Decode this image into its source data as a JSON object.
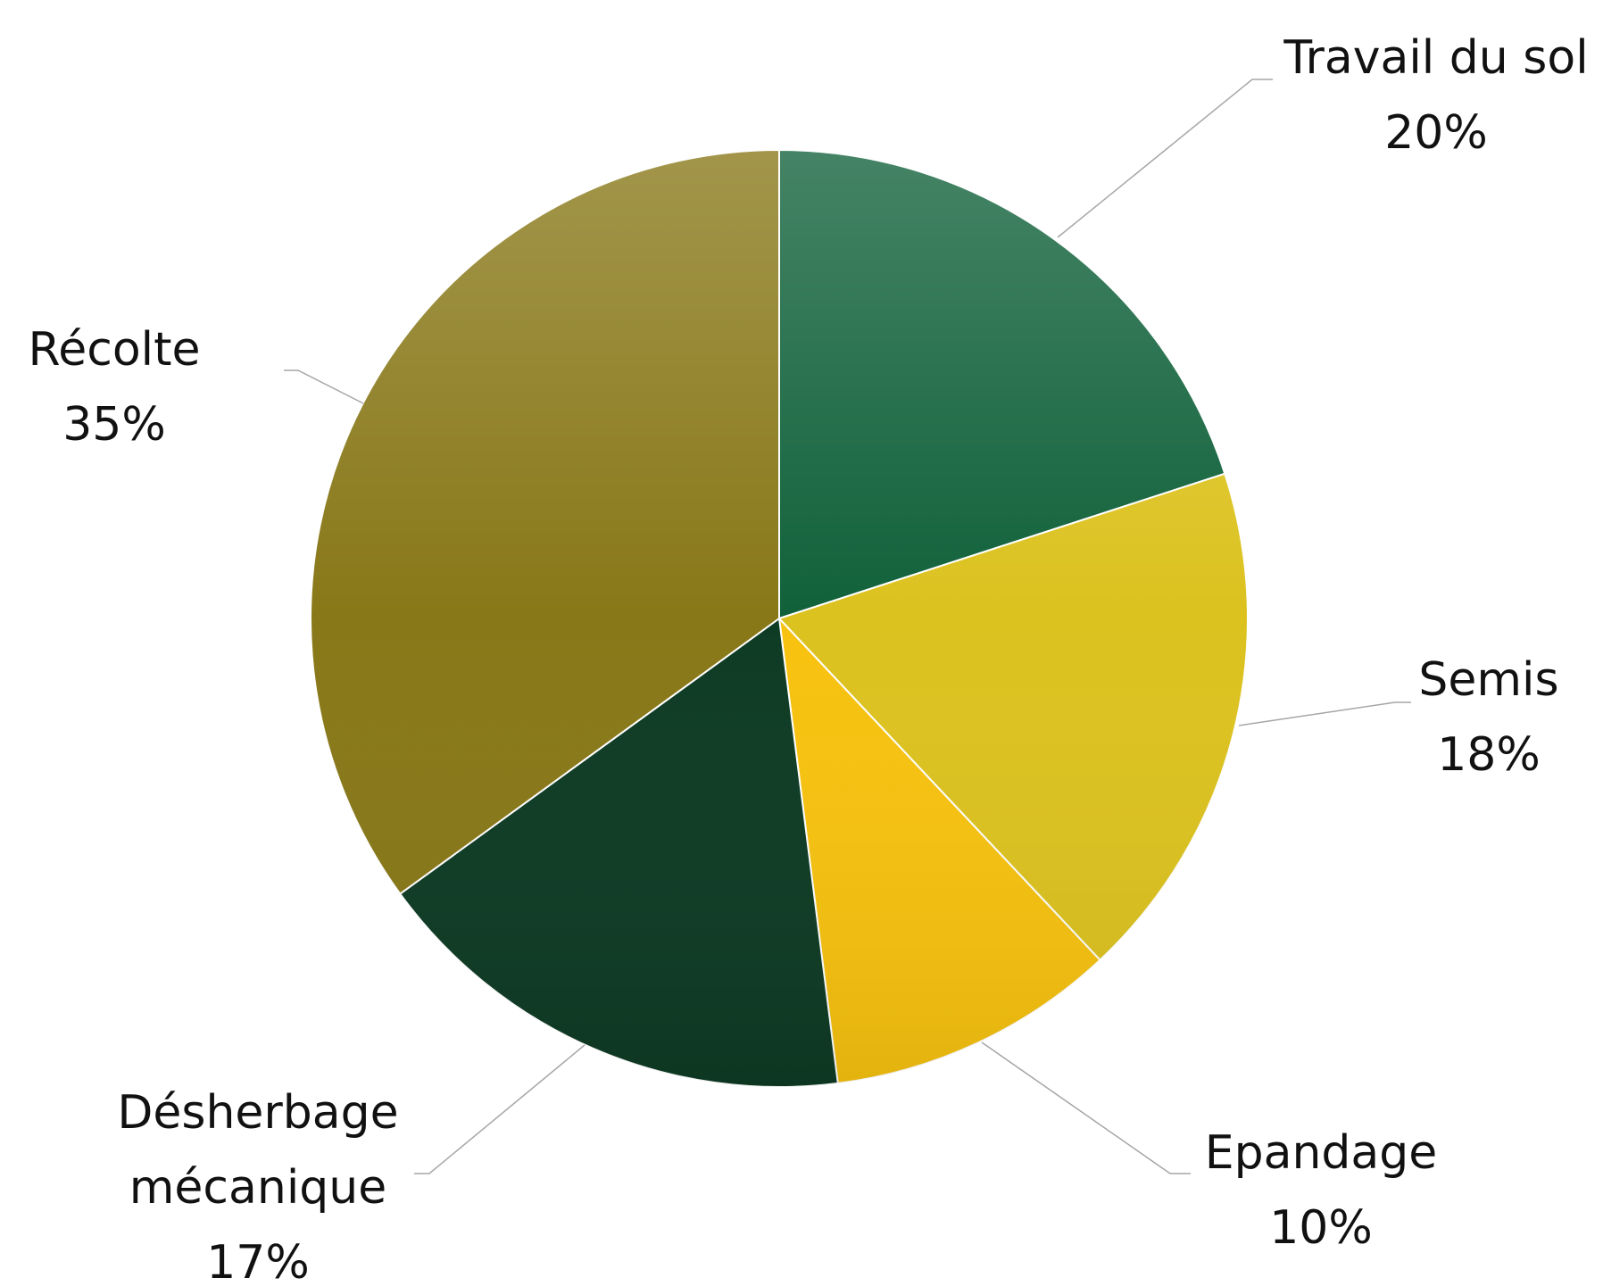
{
  "chart_data": {
    "type": "pie",
    "categories": [
      "Travail du sol",
      "Semis",
      "Epandage",
      "Désherbage mécanique",
      "Récolte"
    ],
    "values": [
      20,
      18,
      10,
      17,
      35
    ],
    "value_labels": [
      "20%",
      "18%",
      "10%",
      "17%",
      "35%"
    ],
    "colors": [
      "#10613a",
      "#dcc21f",
      "#f7c20f",
      "#0e3b24",
      "#887818"
    ]
  }
}
